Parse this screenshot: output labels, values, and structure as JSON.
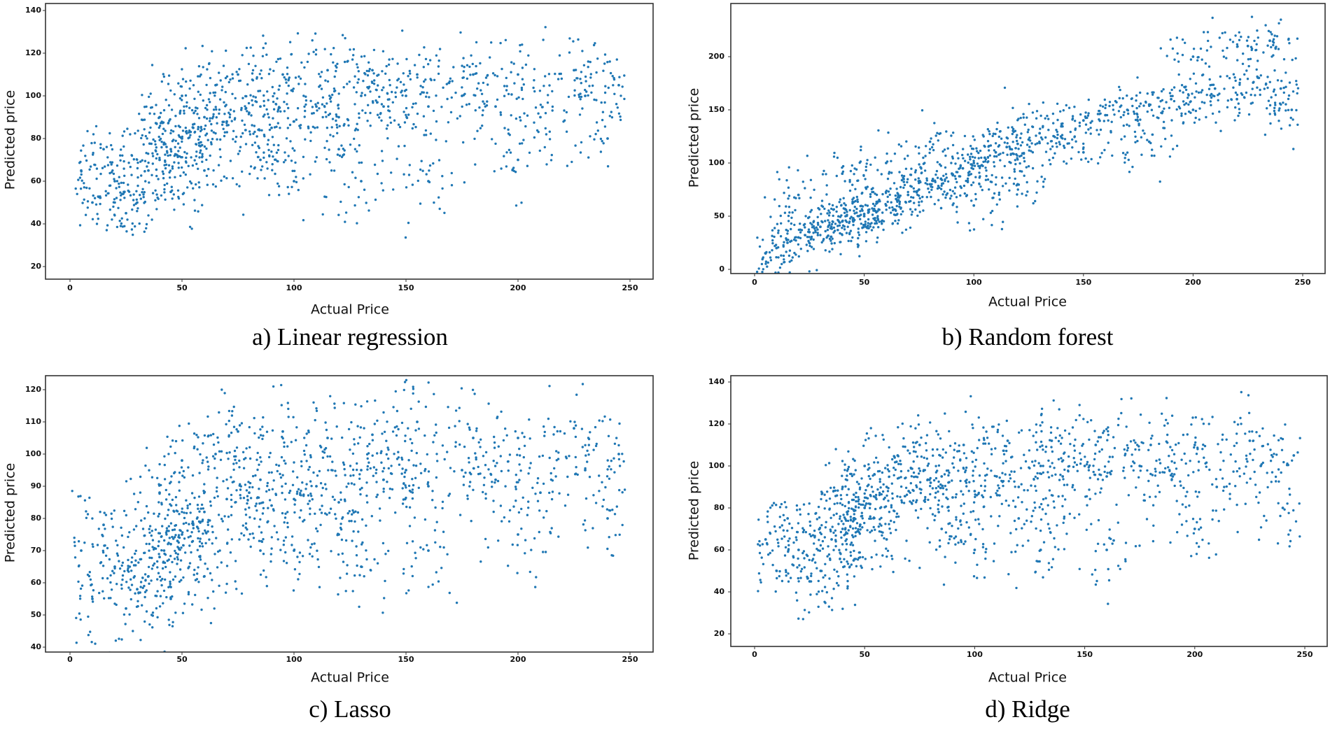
{
  "chart_data": [
    {
      "type": "scatter",
      "caption": "a) Linear regression",
      "xlabel": "Actual Price",
      "ylabel": "Predicted price",
      "xlim": [
        0,
        250
      ],
      "ylim": [
        20,
        140
      ],
      "xticks": [
        "0",
        "50",
        "100",
        "150",
        "200",
        "250"
      ],
      "yticks": [
        "20",
        "40",
        "60",
        "80",
        "100",
        "120",
        "140"
      ],
      "grid": false,
      "color": "#1f77b4",
      "points": [
        [
          45,
          75
        ],
        [
          40,
          70
        ],
        [
          50,
          80
        ],
        [
          35,
          65
        ],
        [
          55,
          85
        ],
        [
          30,
          50
        ],
        [
          60,
          90
        ],
        [
          70,
          88
        ],
        [
          80,
          92
        ],
        [
          85,
          95
        ],
        [
          90,
          85
        ],
        [
          100,
          88
        ],
        [
          110,
          95
        ],
        [
          120,
          90
        ],
        [
          130,
          100
        ],
        [
          140,
          95
        ],
        [
          150,
          100
        ],
        [
          160,
          95
        ],
        [
          175,
          100
        ],
        [
          190,
          95
        ],
        [
          210,
          90
        ],
        [
          230,
          100
        ],
        [
          20,
          60
        ],
        [
          15,
          75
        ],
        [
          10,
          50
        ],
        [
          5,
          65
        ],
        [
          25,
          45
        ],
        [
          45,
          55
        ],
        [
          65,
          105
        ],
        [
          75,
          110
        ],
        [
          95,
          110
        ],
        [
          115,
          112
        ],
        [
          135,
          112
        ],
        [
          155,
          110
        ],
        [
          180,
          110
        ],
        [
          200,
          110
        ],
        [
          225,
          112
        ],
        [
          245,
          105
        ],
        [
          100,
          60
        ],
        [
          130,
          60
        ],
        [
          160,
          60
        ],
        [
          200,
          70
        ],
        [
          240,
          80
        ],
        [
          50,
          100
        ],
        [
          40,
          90
        ],
        [
          120,
          75
        ],
        [
          85,
          70
        ],
        [
          60,
          65
        ],
        [
          42,
          78
        ],
        [
          48,
          72
        ]
      ]
    },
    {
      "type": "scatter",
      "caption": "b) Random forest",
      "xlabel": "Actual Price",
      "ylabel": "Predicted price",
      "xlim": [
        0,
        250
      ],
      "ylim": [
        0,
        240
      ],
      "xticks": [
        "0",
        "50",
        "100",
        "150",
        "200",
        "250"
      ],
      "yticks": [
        "0",
        "50",
        "100",
        "150",
        "200"
      ],
      "grid": false,
      "color": "#1f77b4",
      "points": [
        [
          5,
          15
        ],
        [
          10,
          20
        ],
        [
          15,
          25
        ],
        [
          20,
          30
        ],
        [
          25,
          35
        ],
        [
          30,
          40
        ],
        [
          35,
          40
        ],
        [
          40,
          45
        ],
        [
          45,
          48
        ],
        [
          50,
          50
        ],
        [
          55,
          55
        ],
        [
          60,
          60
        ],
        [
          65,
          65
        ],
        [
          70,
          70
        ],
        [
          75,
          75
        ],
        [
          80,
          80
        ],
        [
          85,
          85
        ],
        [
          90,
          90
        ],
        [
          95,
          95
        ],
        [
          100,
          100
        ],
        [
          105,
          105
        ],
        [
          110,
          110
        ],
        [
          115,
          115
        ],
        [
          120,
          118
        ],
        [
          125,
          122
        ],
        [
          130,
          128
        ],
        [
          140,
          135
        ],
        [
          150,
          140
        ],
        [
          160,
          145
        ],
        [
          170,
          150
        ],
        [
          180,
          155
        ],
        [
          190,
          160
        ],
        [
          200,
          150
        ],
        [
          210,
          170
        ],
        [
          220,
          160
        ],
        [
          230,
          180
        ],
        [
          240,
          170
        ],
        [
          245,
          150
        ],
        [
          20,
          70
        ],
        [
          40,
          90
        ],
        [
          60,
          100
        ],
        [
          80,
          120
        ],
        [
          100,
          60
        ],
        [
          120,
          80
        ],
        [
          150,
          110
        ],
        [
          180,
          120
        ],
        [
          200,
          200
        ],
        [
          225,
          210
        ],
        [
          235,
          215
        ],
        [
          45,
          45
        ],
        [
          50,
          52
        ]
      ]
    },
    {
      "type": "scatter",
      "caption": "c) Lasso",
      "xlabel": "Actual Price",
      "ylabel": "Predicted price",
      "xlim": [
        0,
        250
      ],
      "ylim": [
        40,
        120
      ],
      "xticks": [
        "0",
        "50",
        "100",
        "150",
        "200",
        "250"
      ],
      "yticks": [
        "40",
        "50",
        "60",
        "70",
        "80",
        "90",
        "100",
        "110",
        "120"
      ],
      "grid": false,
      "color": "#1f77b4",
      "points": [
        [
          45,
          72
        ],
        [
          40,
          68
        ],
        [
          50,
          75
        ],
        [
          35,
          62
        ],
        [
          55,
          78
        ],
        [
          30,
          58
        ],
        [
          60,
          82
        ],
        [
          70,
          86
        ],
        [
          80,
          88
        ],
        [
          85,
          92
        ],
        [
          90,
          84
        ],
        [
          100,
          86
        ],
        [
          110,
          90
        ],
        [
          120,
          85
        ],
        [
          130,
          95
        ],
        [
          140,
          92
        ],
        [
          150,
          95
        ],
        [
          160,
          90
        ],
        [
          175,
          95
        ],
        [
          190,
          92
        ],
        [
          210,
          88
        ],
        [
          230,
          95
        ],
        [
          20,
          65
        ],
        [
          15,
          78
        ],
        [
          10,
          55
        ],
        [
          5,
          70
        ],
        [
          25,
          52
        ],
        [
          45,
          55
        ],
        [
          65,
          100
        ],
        [
          75,
          107
        ],
        [
          95,
          107
        ],
        [
          115,
          105
        ],
        [
          135,
          106
        ],
        [
          155,
          110
        ],
        [
          180,
          105
        ],
        [
          200,
          105
        ],
        [
          225,
          108
        ],
        [
          245,
          100
        ],
        [
          100,
          70
        ],
        [
          130,
          65
        ],
        [
          160,
          70
        ],
        [
          200,
          75
        ],
        [
          240,
          80
        ],
        [
          50,
          98
        ],
        [
          40,
          88
        ],
        [
          120,
          75
        ],
        [
          85,
          70
        ],
        [
          60,
          62
        ],
        [
          42,
          70
        ],
        [
          48,
          73
        ]
      ]
    },
    {
      "type": "scatter",
      "caption": "d) Ridge",
      "xlabel": "Actual Price",
      "ylabel": "Predicted price",
      "xlim": [
        0,
        250
      ],
      "ylim": [
        20,
        140
      ],
      "xticks": [
        "0",
        "50",
        "100",
        "150",
        "200",
        "250"
      ],
      "yticks": [
        "20",
        "40",
        "60",
        "80",
        "100",
        "120",
        "140"
      ],
      "grid": false,
      "color": "#1f77b4",
      "points": [
        [
          45,
          75
        ],
        [
          40,
          70
        ],
        [
          50,
          80
        ],
        [
          35,
          65
        ],
        [
          55,
          85
        ],
        [
          30,
          50
        ],
        [
          60,
          90
        ],
        [
          70,
          88
        ],
        [
          80,
          92
        ],
        [
          85,
          95
        ],
        [
          90,
          85
        ],
        [
          100,
          88
        ],
        [
          110,
          95
        ],
        [
          120,
          90
        ],
        [
          130,
          100
        ],
        [
          140,
          95
        ],
        [
          150,
          100
        ],
        [
          160,
          95
        ],
        [
          175,
          100
        ],
        [
          190,
          95
        ],
        [
          210,
          90
        ],
        [
          230,
          100
        ],
        [
          20,
          60
        ],
        [
          15,
          75
        ],
        [
          10,
          50
        ],
        [
          5,
          65
        ],
        [
          25,
          45
        ],
        [
          45,
          55
        ],
        [
          65,
          105
        ],
        [
          75,
          110
        ],
        [
          95,
          110
        ],
        [
          115,
          112
        ],
        [
          135,
          112
        ],
        [
          155,
          110
        ],
        [
          180,
          110
        ],
        [
          200,
          110
        ],
        [
          225,
          112
        ],
        [
          245,
          105
        ],
        [
          100,
          60
        ],
        [
          130,
          60
        ],
        [
          160,
          60
        ],
        [
          200,
          70
        ],
        [
          240,
          80
        ],
        [
          50,
          100
        ],
        [
          40,
          90
        ],
        [
          120,
          75
        ],
        [
          85,
          70
        ],
        [
          60,
          65
        ],
        [
          42,
          78
        ],
        [
          48,
          72
        ]
      ]
    }
  ]
}
